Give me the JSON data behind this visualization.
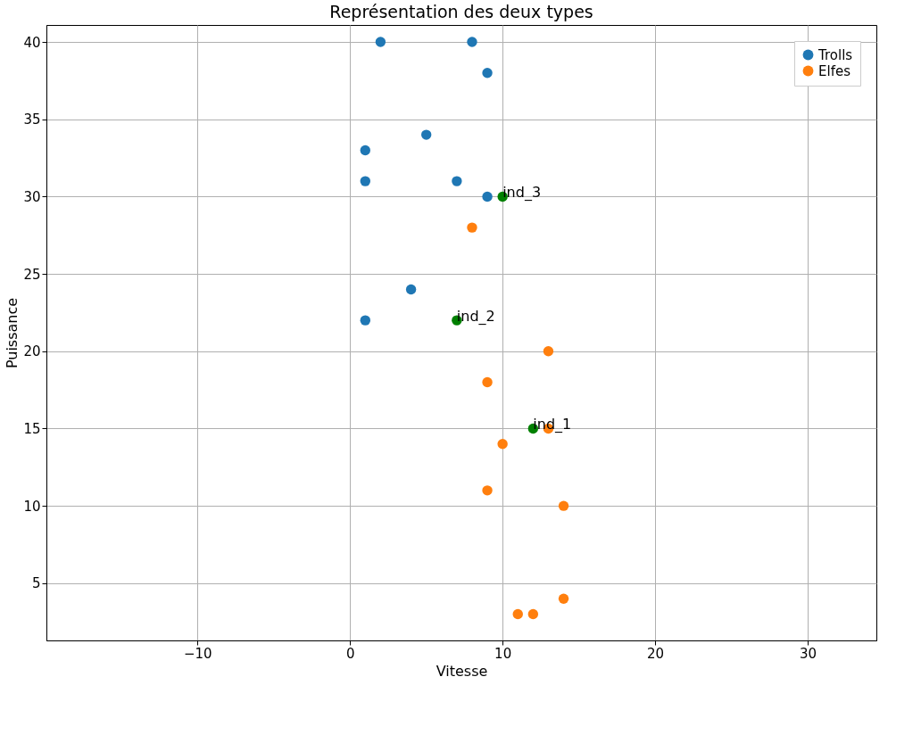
{
  "chart_data": {
    "type": "scatter",
    "title": "Représentation des deux types",
    "xlabel": "Vitesse",
    "ylabel": "Puissance",
    "xlim": [
      -19.9,
      34.5
    ],
    "ylim": [
      1.3,
      41.1
    ],
    "xticks": [
      -10,
      0,
      10,
      20,
      30
    ],
    "yticks": [
      5,
      10,
      15,
      20,
      25,
      30,
      35,
      40
    ],
    "grid": true,
    "legend": "top right",
    "marker": "circle",
    "series": [
      {
        "name": "Trolls",
        "color": "#1f77b4",
        "x": [
          2,
          8,
          9,
          5,
          1,
          1,
          7,
          9,
          4,
          1
        ],
        "values": [
          40,
          40,
          38,
          34,
          33,
          31,
          31,
          30,
          24,
          22
        ]
      },
      {
        "name": "Elfes",
        "color": "#ff7f0e",
        "x": [
          8,
          13,
          9,
          13,
          10,
          9,
          14,
          14,
          11,
          12
        ],
        "values": [
          28,
          20,
          18,
          15,
          14,
          11,
          10,
          4,
          3,
          3
        ]
      },
      {
        "color": "#008000",
        "x": [
          12,
          7,
          10
        ],
        "values": [
          15,
          22,
          30
        ]
      }
    ],
    "annotations": [
      {
        "text": "ind_1",
        "x": 12,
        "y": 15
      },
      {
        "text": "ind_2",
        "x": 7,
        "y": 22
      },
      {
        "text": "ind_3",
        "x": 10,
        "y": 30
      }
    ]
  }
}
